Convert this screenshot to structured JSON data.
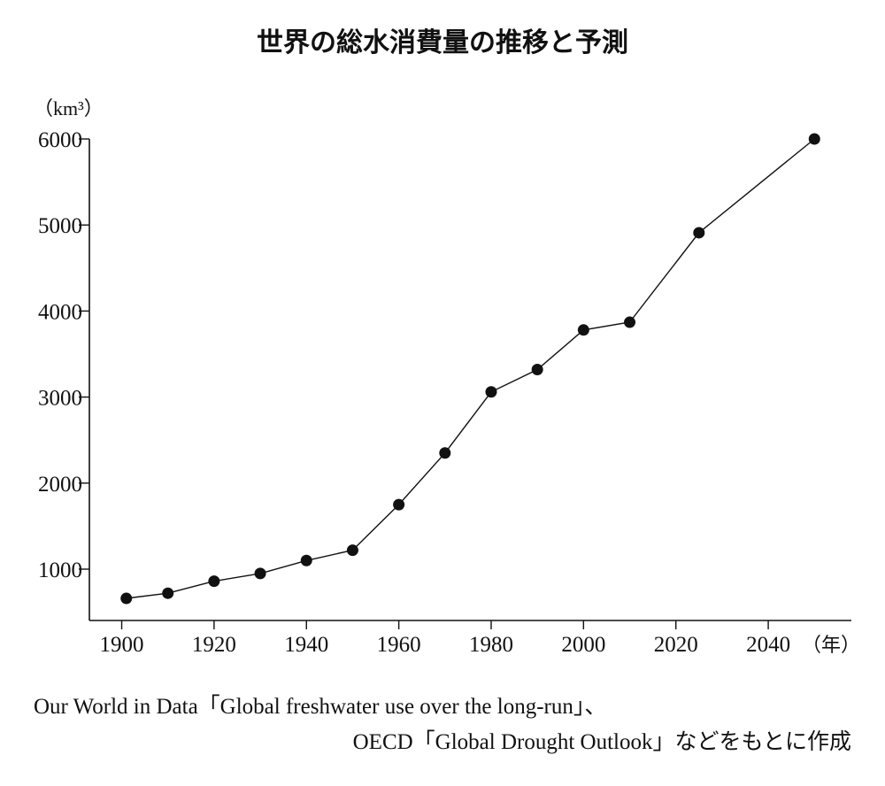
{
  "chart_data": {
    "type": "line",
    "title": "世界の総水消費量の推移と予測",
    "ylabel": "（km³）",
    "xlabel": "（年）",
    "x_ticks": [
      1900,
      1920,
      1940,
      1960,
      1980,
      2000,
      2020,
      2040
    ],
    "y_ticks": [
      1000,
      2000,
      3000,
      4000,
      5000,
      6000
    ],
    "xlim": [
      1893,
      2058
    ],
    "ylim": [
      400,
      6000
    ],
    "x": [
      1901,
      1910,
      1920,
      1930,
      1940,
      1950,
      1960,
      1970,
      1980,
      1990,
      2000,
      2010,
      2025,
      2050
    ],
    "values": [
      660,
      720,
      860,
      950,
      1100,
      1220,
      1750,
      2350,
      3060,
      3320,
      3780,
      3870,
      4910,
      6000
    ],
    "grid": false,
    "legend": "none"
  },
  "source": {
    "line1": "Our World in Data「Global freshwater use over the long-run」、",
    "line2": "OECD「Global Drought Outlook」などをもとに作成"
  }
}
